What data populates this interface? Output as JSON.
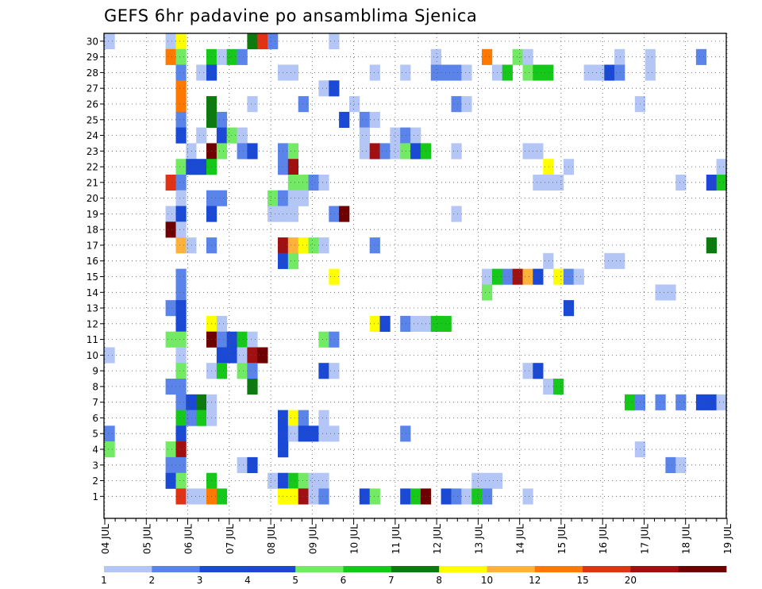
{
  "chart_data": {
    "type": "heatmap",
    "title": "GEFS 6hr padavine po ansamblima Sjenica",
    "xlabel": "",
    "ylabel": "",
    "x_ticks": [
      "04 JUL",
      "05 JUL",
      "06 JUL",
      "07 JUL",
      "08 JUL",
      "09 JUL",
      "10 JUL",
      "11 JUL",
      "12 JUL",
      "13 JUL",
      "14 JUL",
      "15 JUL",
      "16 JUL",
      "17 JUL",
      "18 JUL",
      "19 JUL"
    ],
    "xlim": [
      0,
      61
    ],
    "x_step": "6hr",
    "y_ticks": [
      1,
      2,
      3,
      4,
      5,
      6,
      7,
      8,
      9,
      10,
      11,
      12,
      13,
      14,
      15,
      16,
      17,
      18,
      19,
      20,
      21,
      22,
      23,
      24,
      25,
      26,
      27,
      28,
      29,
      30
    ],
    "ylim": [
      0,
      30
    ],
    "grid": true,
    "legend": "bottom colorbar",
    "colorbar": {
      "labels": [
        "1",
        "2",
        "3",
        "4",
        "5",
        "6",
        "7",
        "8",
        "10",
        "12",
        "15",
        "20"
      ],
      "colors": [
        "#b4c6f5",
        "#5b84ea",
        "#1a49d6",
        "#1e44d8",
        "#72ea64",
        "#16c81a",
        "#0d7a10",
        "#ffff00",
        "#ffb23a",
        "#ff7800",
        "#e23216",
        "#a01010",
        "#6e0000"
      ]
    },
    "cells_format": "[member, x_index, level]",
    "cells": [
      [
        30,
        1,
        0
      ],
      [
        30,
        7,
        0
      ],
      [
        30,
        8,
        7
      ],
      [
        30,
        15,
        6
      ],
      [
        30,
        16,
        10
      ],
      [
        30,
        17,
        1
      ],
      [
        30,
        23,
        0
      ],
      [
        29,
        7,
        9
      ],
      [
        29,
        8,
        4
      ],
      [
        29,
        11,
        5
      ],
      [
        29,
        12,
        0
      ],
      [
        29,
        13,
        5
      ],
      [
        29,
        14,
        1
      ],
      [
        29,
        33,
        0
      ],
      [
        29,
        38,
        9
      ],
      [
        29,
        41,
        4
      ],
      [
        29,
        42,
        0
      ],
      [
        29,
        51,
        0
      ],
      [
        29,
        54,
        0
      ],
      [
        29,
        59,
        1
      ],
      [
        28,
        8,
        1
      ],
      [
        28,
        10,
        0
      ],
      [
        28,
        11,
        2
      ],
      [
        28,
        18,
        0
      ],
      [
        28,
        19,
        0
      ],
      [
        28,
        27,
        0
      ],
      [
        28,
        30,
        0
      ],
      [
        28,
        33,
        1
      ],
      [
        28,
        34,
        1
      ],
      [
        28,
        35,
        1
      ],
      [
        28,
        36,
        0
      ],
      [
        28,
        39,
        0
      ],
      [
        28,
        40,
        5
      ],
      [
        28,
        42,
        4
      ],
      [
        28,
        43,
        5
      ],
      [
        28,
        44,
        5
      ],
      [
        28,
        48,
        0
      ],
      [
        28,
        49,
        0
      ],
      [
        28,
        50,
        2
      ],
      [
        28,
        51,
        1
      ],
      [
        28,
        54,
        0
      ],
      [
        27,
        8,
        9
      ],
      [
        27,
        22,
        0
      ],
      [
        27,
        23,
        2
      ],
      [
        26,
        8,
        9
      ],
      [
        26,
        11,
        6
      ],
      [
        26,
        15,
        0
      ],
      [
        26,
        20,
        1
      ],
      [
        26,
        25,
        0
      ],
      [
        26,
        35,
        1
      ],
      [
        26,
        36,
        0
      ],
      [
        26,
        53,
        0
      ],
      [
        25,
        8,
        1
      ],
      [
        25,
        11,
        6
      ],
      [
        25,
        12,
        1
      ],
      [
        25,
        24,
        2
      ],
      [
        25,
        26,
        1
      ],
      [
        25,
        27,
        0
      ],
      [
        24,
        8,
        2
      ],
      [
        24,
        10,
        0
      ],
      [
        24,
        12,
        2
      ],
      [
        24,
        13,
        4
      ],
      [
        24,
        14,
        0
      ],
      [
        24,
        26,
        0
      ],
      [
        24,
        29,
        0
      ],
      [
        24,
        30,
        1
      ],
      [
        24,
        31,
        0
      ],
      [
        23,
        9,
        0
      ],
      [
        23,
        11,
        12
      ],
      [
        23,
        12,
        4
      ],
      [
        23,
        14,
        1
      ],
      [
        23,
        15,
        2
      ],
      [
        23,
        18,
        1
      ],
      [
        23,
        19,
        4
      ],
      [
        23,
        26,
        0
      ],
      [
        23,
        27,
        11
      ],
      [
        23,
        28,
        1
      ],
      [
        23,
        29,
        0
      ],
      [
        23,
        30,
        4
      ],
      [
        23,
        31,
        2
      ],
      [
        23,
        32,
        5
      ],
      [
        23,
        35,
        0
      ],
      [
        23,
        42,
        0
      ],
      [
        23,
        43,
        0
      ],
      [
        22,
        8,
        4
      ],
      [
        22,
        9,
        2
      ],
      [
        22,
        10,
        2
      ],
      [
        22,
        11,
        5
      ],
      [
        22,
        18,
        1
      ],
      [
        22,
        19,
        11
      ],
      [
        22,
        44,
        7
      ],
      [
        22,
        46,
        0
      ],
      [
        22,
        61,
        0
      ],
      [
        21,
        7,
        10
      ],
      [
        21,
        8,
        1
      ],
      [
        21,
        19,
        4
      ],
      [
        21,
        20,
        4
      ],
      [
        21,
        21,
        1
      ],
      [
        21,
        22,
        0
      ],
      [
        21,
        43,
        0
      ],
      [
        21,
        44,
        0
      ],
      [
        21,
        45,
        0
      ],
      [
        21,
        57,
        0
      ],
      [
        21,
        60,
        3
      ],
      [
        21,
        61,
        5
      ],
      [
        20,
        8,
        0
      ],
      [
        20,
        11,
        1
      ],
      [
        20,
        12,
        1
      ],
      [
        20,
        17,
        4
      ],
      [
        20,
        18,
        1
      ],
      [
        20,
        19,
        0
      ],
      [
        20,
        20,
        0
      ],
      [
        19,
        7,
        0
      ],
      [
        19,
        8,
        2
      ],
      [
        19,
        11,
        2
      ],
      [
        19,
        17,
        0
      ],
      [
        19,
        18,
        0
      ],
      [
        19,
        19,
        0
      ],
      [
        19,
        23,
        1
      ],
      [
        19,
        24,
        12
      ],
      [
        19,
        35,
        0
      ],
      [
        18,
        7,
        12
      ],
      [
        18,
        8,
        0
      ],
      [
        17,
        8,
        8
      ],
      [
        17,
        9,
        0
      ],
      [
        17,
        11,
        1
      ],
      [
        17,
        18,
        11
      ],
      [
        17,
        19,
        8
      ],
      [
        17,
        20,
        7
      ],
      [
        17,
        21,
        4
      ],
      [
        17,
        22,
        0
      ],
      [
        17,
        27,
        1
      ],
      [
        17,
        60,
        6
      ],
      [
        16,
        18,
        2
      ],
      [
        16,
        19,
        4
      ],
      [
        16,
        44,
        0
      ],
      [
        16,
        50,
        0
      ],
      [
        16,
        51,
        0
      ],
      [
        15,
        8,
        1
      ],
      [
        15,
        23,
        7
      ],
      [
        15,
        38,
        0
      ],
      [
        15,
        39,
        5
      ],
      [
        15,
        40,
        1
      ],
      [
        15,
        41,
        11
      ],
      [
        15,
        42,
        8
      ],
      [
        15,
        43,
        2
      ],
      [
        15,
        45,
        7
      ],
      [
        15,
        46,
        1
      ],
      [
        15,
        47,
        0
      ],
      [
        14,
        8,
        1
      ],
      [
        14,
        38,
        4
      ],
      [
        14,
        55,
        0
      ],
      [
        14,
        56,
        0
      ],
      [
        13,
        7,
        1
      ],
      [
        13,
        8,
        2
      ],
      [
        13,
        46,
        2
      ],
      [
        12,
        8,
        2
      ],
      [
        12,
        11,
        7
      ],
      [
        12,
        12,
        0
      ],
      [
        12,
        27,
        7
      ],
      [
        12,
        28,
        2
      ],
      [
        12,
        30,
        1
      ],
      [
        12,
        31,
        0
      ],
      [
        12,
        32,
        0
      ],
      [
        12,
        33,
        5
      ],
      [
        12,
        34,
        5
      ],
      [
        11,
        7,
        4
      ],
      [
        11,
        8,
        4
      ],
      [
        11,
        11,
        12
      ],
      [
        11,
        12,
        1
      ],
      [
        11,
        13,
        2
      ],
      [
        11,
        14,
        5
      ],
      [
        11,
        15,
        0
      ],
      [
        11,
        22,
        4
      ],
      [
        11,
        23,
        1
      ],
      [
        10,
        8,
        0
      ],
      [
        10,
        12,
        2
      ],
      [
        10,
        13,
        2
      ],
      [
        10,
        14,
        0
      ],
      [
        10,
        15,
        11
      ],
      [
        10,
        16,
        12
      ],
      [
        10,
        1,
        0
      ],
      [
        9,
        8,
        4
      ],
      [
        9,
        11,
        0
      ],
      [
        9,
        12,
        5
      ],
      [
        9,
        14,
        4
      ],
      [
        9,
        15,
        1
      ],
      [
        9,
        22,
        2
      ],
      [
        9,
        23,
        0
      ],
      [
        9,
        42,
        0
      ],
      [
        9,
        43,
        2
      ],
      [
        8,
        7,
        1
      ],
      [
        8,
        8,
        1
      ],
      [
        8,
        15,
        6
      ],
      [
        8,
        44,
        0
      ],
      [
        8,
        45,
        5
      ],
      [
        7,
        8,
        1
      ],
      [
        7,
        9,
        2
      ],
      [
        7,
        10,
        6
      ],
      [
        7,
        11,
        0
      ],
      [
        7,
        52,
        5
      ],
      [
        7,
        53,
        1
      ],
      [
        7,
        55,
        1
      ],
      [
        7,
        57,
        1
      ],
      [
        7,
        59,
        2
      ],
      [
        7,
        60,
        2
      ],
      [
        7,
        61,
        0
      ],
      [
        6,
        8,
        5
      ],
      [
        6,
        9,
        1
      ],
      [
        6,
        10,
        5
      ],
      [
        6,
        11,
        0
      ],
      [
        6,
        18,
        2
      ],
      [
        6,
        19,
        7
      ],
      [
        6,
        20,
        1
      ],
      [
        6,
        22,
        0
      ],
      [
        5,
        1,
        1
      ],
      [
        5,
        8,
        2
      ],
      [
        5,
        18,
        2
      ],
      [
        5,
        19,
        0
      ],
      [
        5,
        20,
        2
      ],
      [
        5,
        21,
        2
      ],
      [
        5,
        22,
        0
      ],
      [
        5,
        23,
        0
      ],
      [
        5,
        30,
        1
      ],
      [
        4,
        1,
        4
      ],
      [
        4,
        7,
        4
      ],
      [
        4,
        8,
        11
      ],
      [
        4,
        18,
        2
      ],
      [
        4,
        53,
        0
      ],
      [
        3,
        7,
        1
      ],
      [
        3,
        8,
        1
      ],
      [
        3,
        14,
        0
      ],
      [
        3,
        15,
        2
      ],
      [
        3,
        56,
        1
      ],
      [
        3,
        57,
        0
      ],
      [
        2,
        7,
        2
      ],
      [
        2,
        8,
        4
      ],
      [
        2,
        11,
        5
      ],
      [
        2,
        17,
        0
      ],
      [
        2,
        18,
        2
      ],
      [
        2,
        19,
        5
      ],
      [
        2,
        20,
        4
      ],
      [
        2,
        21,
        0
      ],
      [
        2,
        22,
        0
      ],
      [
        2,
        37,
        0
      ],
      [
        2,
        38,
        0
      ],
      [
        2,
        39,
        0
      ],
      [
        1,
        8,
        10
      ],
      [
        1,
        9,
        0
      ],
      [
        1,
        10,
        0
      ],
      [
        1,
        11,
        9
      ],
      [
        1,
        12,
        5
      ],
      [
        1,
        18,
        7
      ],
      [
        1,
        19,
        7
      ],
      [
        1,
        20,
        11
      ],
      [
        1,
        21,
        0
      ],
      [
        1,
        22,
        1
      ],
      [
        1,
        26,
        2
      ],
      [
        1,
        27,
        4
      ],
      [
        1,
        30,
        2
      ],
      [
        1,
        31,
        5
      ],
      [
        1,
        32,
        12
      ],
      [
        1,
        34,
        2
      ],
      [
        1,
        35,
        1
      ],
      [
        1,
        36,
        0
      ],
      [
        1,
        37,
        5
      ],
      [
        1,
        38,
        1
      ],
      [
        1,
        42,
        0
      ]
    ]
  }
}
